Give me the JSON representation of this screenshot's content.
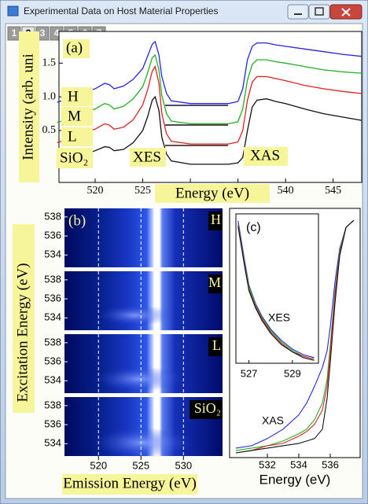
{
  "window": {
    "title": "Experimental Data on Host Material Properties",
    "tabs": [
      "1",
      "2",
      "3",
      "4",
      "5",
      "6",
      "7"
    ],
    "active_tab": "2"
  },
  "chart_data": [
    {
      "type": "line",
      "label": "(a)",
      "xlabel": "Energy (eV)",
      "ylabel": "Intensity (arb. uni",
      "annotations": [
        "H",
        "M",
        "L",
        "SiO₂",
        "XES",
        "XAS"
      ],
      "x": [
        516,
        518,
        519,
        520,
        521,
        521.5,
        522,
        523,
        524,
        525,
        525.5,
        526,
        526.3,
        526.7,
        527,
        527.5,
        528,
        530,
        532,
        534,
        535,
        535.5,
        536,
        536.5,
        537,
        538,
        539,
        540,
        542,
        544,
        546,
        548
      ],
      "series": [
        {
          "name": "H",
          "color": "#2424e6",
          "values": [
            0.92,
            1.0,
            1.08,
            1.12,
            1.2,
            1.18,
            1.12,
            1.16,
            1.26,
            1.42,
            1.6,
            1.78,
            1.82,
            1.62,
            1.3,
            1.05,
            0.94,
            0.9,
            0.9,
            0.9,
            0.93,
            1.12,
            1.55,
            1.75,
            1.8,
            1.8,
            1.77,
            1.75,
            1.71,
            1.67,
            1.63,
            1.6
          ]
        },
        {
          "name": "M",
          "color": "#1fb21f",
          "values": [
            0.62,
            0.7,
            0.78,
            0.82,
            0.9,
            0.88,
            0.82,
            0.86,
            0.97,
            1.15,
            1.35,
            1.58,
            1.62,
            1.4,
            1.02,
            0.75,
            0.64,
            0.6,
            0.6,
            0.6,
            0.63,
            0.82,
            1.25,
            1.48,
            1.55,
            1.55,
            1.52,
            1.5,
            1.45,
            1.4,
            1.37,
            1.35
          ]
        },
        {
          "name": "L",
          "color": "#e02020",
          "values": [
            0.32,
            0.4,
            0.48,
            0.52,
            0.6,
            0.58,
            0.52,
            0.55,
            0.66,
            0.88,
            1.1,
            1.38,
            1.45,
            1.2,
            0.75,
            0.45,
            0.34,
            0.3,
            0.3,
            0.3,
            0.33,
            0.5,
            0.95,
            1.22,
            1.3,
            1.3,
            1.27,
            1.24,
            1.17,
            1.12,
            1.08,
            1.05
          ]
        },
        {
          "name": "SiO₂",
          "color": "#111111",
          "values": [
            0.02,
            0.08,
            0.15,
            0.2,
            0.26,
            0.25,
            0.2,
            0.22,
            0.32,
            0.5,
            0.7,
            0.95,
            1.0,
            0.8,
            0.4,
            0.15,
            0.05,
            0.0,
            0.0,
            0.0,
            0.02,
            0.1,
            0.5,
            0.85,
            0.95,
            0.97,
            0.93,
            0.9,
            0.82,
            0.75,
            0.7,
            0.65
          ]
        }
      ],
      "xlim": [
        516.2,
        548
      ],
      "ylim": [
        -0.27,
        1.97
      ],
      "xticks": [
        520,
        525,
        530,
        535,
        540,
        545
      ],
      "yticks": [
        0.5,
        {
          "value": 1,
          "label": "1.0"
        },
        1.5
      ]
    },
    {
      "type": "heatmap",
      "label": "(b)",
      "xlabel": "Emission Energy (eV)",
      "ylabel": "Excitation Energy (eV)",
      "panels": [
        "H",
        "M",
        "L",
        "SiO₂"
      ],
      "xlim": [
        516,
        534.6
      ],
      "ylim": [
        532.7,
        538.9
      ],
      "xticks": [
        520,
        525,
        530
      ],
      "yticks": [
        534,
        536,
        538
      ],
      "grid": true
    },
    {
      "type": "line",
      "label": "(c)",
      "xlabel": "Energy (eV)",
      "annotations": [
        "XES",
        "XAS"
      ],
      "x": [
        530,
        531,
        532,
        533,
        534,
        534.5,
        535,
        535.5,
        535.8,
        536,
        536.3,
        536.6,
        537,
        537.5
      ],
      "series": [
        {
          "color": "#2424e6",
          "values": [
            0.04,
            0.05,
            0.08,
            0.12,
            0.18,
            0.23,
            0.3,
            0.38,
            0.45,
            0.55,
            0.74,
            0.88,
            0.97,
            1.0
          ]
        },
        {
          "color": "#1fb21f",
          "values": [
            0.03,
            0.04,
            0.05,
            0.07,
            0.1,
            0.12,
            0.16,
            0.23,
            0.33,
            0.47,
            0.7,
            0.87,
            0.97,
            1.0
          ]
        },
        {
          "color": "#e02020",
          "values": [
            0.02,
            0.03,
            0.05,
            0.06,
            0.09,
            0.11,
            0.14,
            0.2,
            0.3,
            0.45,
            0.68,
            0.86,
            0.97,
            1.0
          ]
        },
        {
          "color": "#111111",
          "values": [
            0.02,
            0.03,
            0.04,
            0.05,
            0.06,
            0.07,
            0.08,
            0.12,
            0.25,
            0.4,
            0.65,
            0.85,
            0.97,
            1.0
          ]
        }
      ],
      "xlim": [
        529.6,
        537.9
      ],
      "ylim": [
        0,
        1.05
      ],
      "xticks": [
        532,
        534,
        536
      ],
      "inset": {
        "x": [
          526.5,
          526.8,
          527,
          527.3,
          527.6,
          528,
          528.5,
          529,
          529.5,
          530
        ],
        "series": [
          {
            "color": "#2424e6",
            "values": [
              1.0,
              0.72,
              0.55,
              0.42,
              0.33,
              0.24,
              0.16,
              0.1,
              0.06,
              0.04
            ]
          },
          {
            "color": "#1fb21f",
            "values": [
              0.98,
              0.7,
              0.54,
              0.41,
              0.32,
              0.23,
              0.15,
              0.09,
              0.05,
              0.03
            ]
          },
          {
            "color": "#e02020",
            "values": [
              0.97,
              0.69,
              0.52,
              0.4,
              0.31,
              0.22,
              0.14,
              0.08,
              0.05,
              0.03
            ]
          },
          {
            "color": "#111111",
            "values": [
              0.96,
              0.68,
              0.51,
              0.39,
              0.3,
              0.21,
              0.13,
              0.08,
              0.04,
              0.02
            ]
          }
        ],
        "xlim": [
          526.4,
          530.2
        ],
        "ylim": [
          0,
          1.05
        ],
        "xticks": [
          527,
          529
        ]
      }
    }
  ]
}
